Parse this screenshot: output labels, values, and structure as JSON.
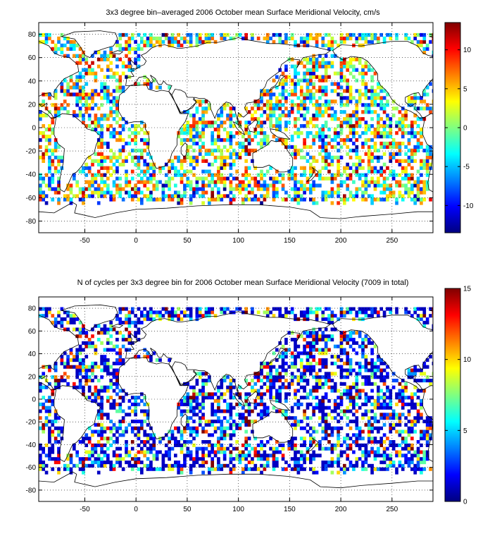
{
  "chart_data": [
    {
      "type": "heatmap",
      "title": "3x3 degree bin–averaged 2006 October mean Surface Meridional Velocity, cm/s",
      "xlabel": "",
      "ylabel": "",
      "xlim": [
        -95,
        290
      ],
      "ylim": [
        -90,
        90
      ],
      "xticks": [
        -50,
        0,
        50,
        100,
        150,
        200,
        250
      ],
      "yticks": [
        80,
        60,
        40,
        20,
        0,
        -20,
        -40,
        -60,
        -80
      ],
      "grid": true,
      "colormap": "jet",
      "colorbar": {
        "range": [
          -13.5,
          13.5
        ],
        "ticks": [
          10,
          5,
          0,
          -5,
          -10
        ]
      },
      "bin_size_deg": 3,
      "seed": 7,
      "fill_probability": 0.55,
      "value_mode": "velocity"
    },
    {
      "type": "heatmap",
      "title": "N of cycles per 3x3 degree bin for 2006 October mean Surface Meridional Velocity (7009 in total)",
      "xlabel": "",
      "ylabel": "",
      "xlim": [
        -95,
        290
      ],
      "ylim": [
        -90,
        90
      ],
      "xticks": [
        -50,
        0,
        50,
        100,
        150,
        200,
        250
      ],
      "yticks": [
        80,
        60,
        40,
        20,
        0,
        -20,
        -40,
        -60,
        -80
      ],
      "grid": true,
      "colormap": "jet",
      "colorbar": {
        "range": [
          0,
          15
        ],
        "ticks": [
          15,
          10,
          5,
          0
        ]
      },
      "bin_size_deg": 3,
      "seed": 7,
      "fill_probability": 0.55,
      "value_mode": "count",
      "total_cycles": 7009
    }
  ]
}
